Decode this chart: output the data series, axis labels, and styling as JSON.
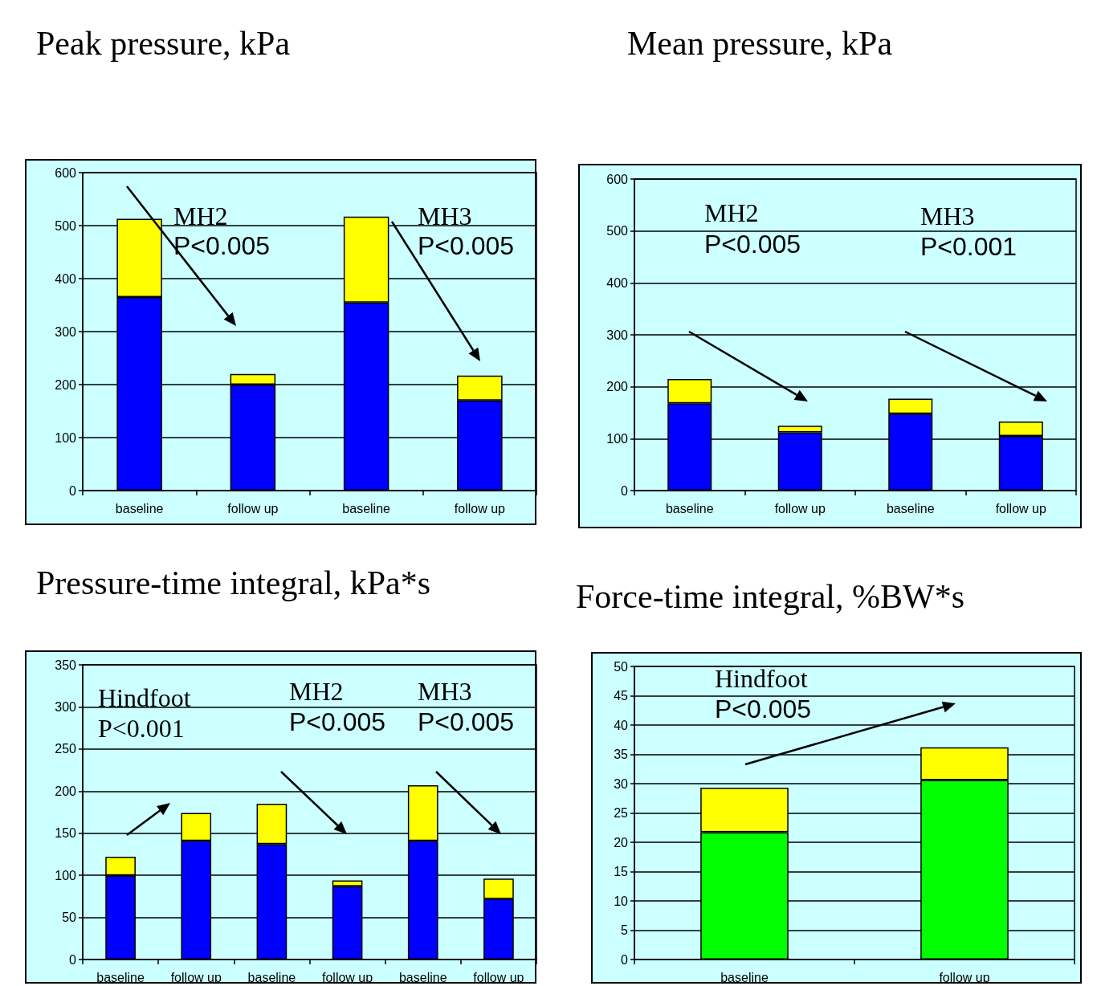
{
  "chart_data": [
    {
      "type": "bar",
      "title": "Peak pressure, kPa",
      "categories": [
        "baseline",
        "follow up",
        "baseline",
        "follow up"
      ],
      "stacked": true,
      "grid": true,
      "ylim": [
        0,
        600
      ],
      "yticks": [
        0,
        100,
        200,
        300,
        400,
        500,
        600
      ],
      "series": [
        {
          "color": "#0000ff",
          "values": [
            365,
            200,
            355,
            170
          ]
        },
        {
          "color": "#ffff00",
          "values": [
            148,
            20,
            162,
            47
          ]
        }
      ],
      "annotations": [
        "MH2",
        "P<0.005",
        "MH3",
        "P<0.005"
      ]
    },
    {
      "type": "bar",
      "title": "Mean pressure, kPa",
      "categories": [
        "baseline",
        "follow up",
        "baseline",
        "follow up"
      ],
      "stacked": true,
      "grid": true,
      "ylim": [
        0,
        600
      ],
      "yticks": [
        0,
        100,
        200,
        300,
        400,
        500,
        600
      ],
      "series": [
        {
          "color": "#0000ff",
          "values": [
            168,
            112,
            148,
            105
          ]
        },
        {
          "color": "#ffff00",
          "values": [
            47,
            13,
            29,
            28
          ]
        }
      ],
      "annotations": [
        "MH2",
        "P<0.005",
        "MH3",
        "P<0.001"
      ]
    },
    {
      "type": "bar",
      "title": "Pressure-time integral, kPa*s",
      "categories": [
        "baseline",
        "follow up",
        "baseline",
        "follow up",
        "baseline",
        "follow up"
      ],
      "stacked": true,
      "grid": true,
      "ylim": [
        0,
        350
      ],
      "yticks": [
        0,
        50,
        100,
        150,
        200,
        250,
        300,
        350
      ],
      "series": [
        {
          "color": "#0000ff",
          "values": [
            100,
            141,
            137,
            87,
            141,
            72
          ]
        },
        {
          "color": "#ffff00",
          "values": [
            22,
            33,
            48,
            7,
            66,
            24
          ]
        }
      ],
      "annotations": [
        "Hindfoot",
        "P<0.001",
        "MH2",
        "P<0.005",
        "MH3",
        "P<0.005"
      ]
    },
    {
      "type": "bar",
      "title": "Force-time integral, %BW*s",
      "categories": [
        "baseline",
        "follow up"
      ],
      "stacked": true,
      "grid": true,
      "ylim": [
        0,
        50
      ],
      "yticks": [
        0,
        5,
        10,
        15,
        20,
        25,
        30,
        35,
        40,
        45,
        50
      ],
      "series": [
        {
          "color": "#00ff00",
          "values": [
            21.7,
            30.6
          ]
        },
        {
          "color": "#ffff00",
          "values": [
            7.6,
            5.6
          ]
        }
      ],
      "annotations": [
        "Hindfoot",
        "P<0.005"
      ]
    }
  ]
}
